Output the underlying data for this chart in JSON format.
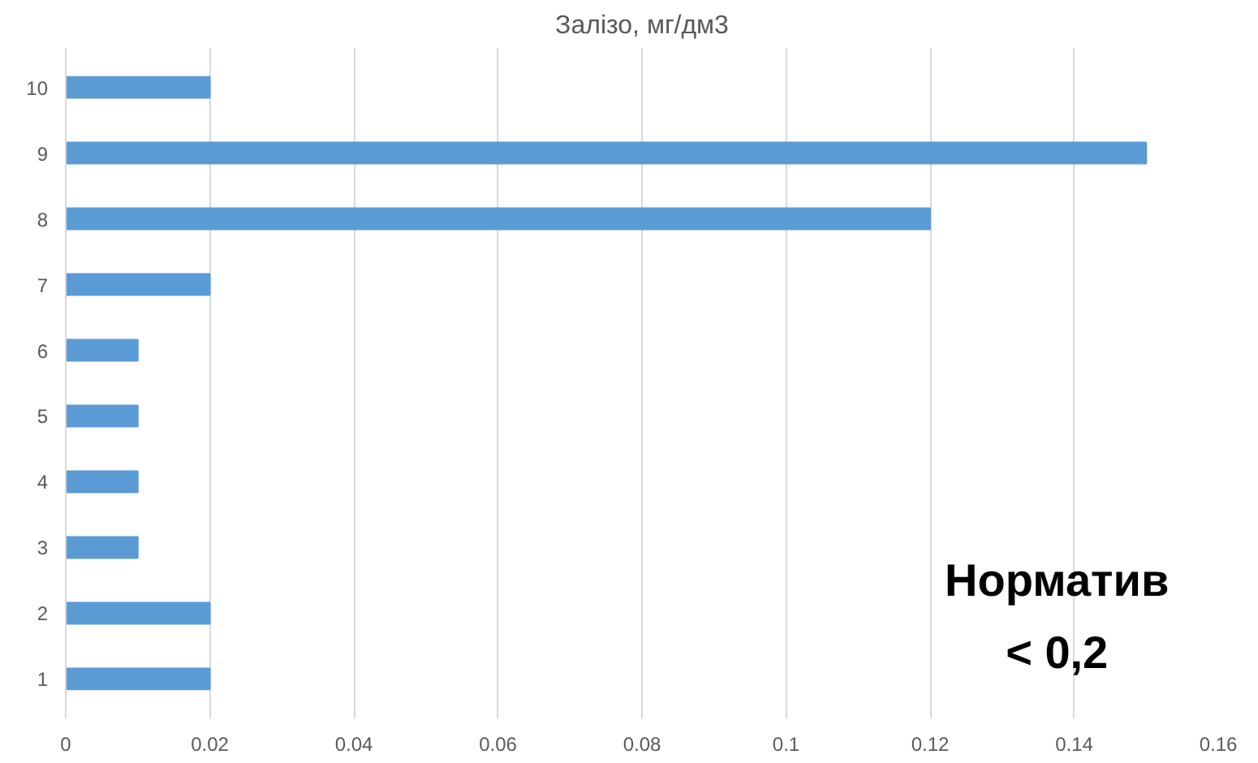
{
  "chart_data": {
    "type": "bar",
    "orientation": "horizontal",
    "title": "Залізо, мг/дм3",
    "categories": [
      "10",
      "9",
      "8",
      "7",
      "6",
      "5",
      "4",
      "3",
      "2",
      "1"
    ],
    "values": [
      0.02,
      0.15,
      0.12,
      0.02,
      0.01,
      0.01,
      0.01,
      0.01,
      0.02,
      0.02
    ],
    "color": "#5b9bd5",
    "xlim": [
      0,
      0.16
    ],
    "xticks": [
      0,
      0.02,
      0.04,
      0.06,
      0.08,
      0.1,
      0.12,
      0.14,
      0.16
    ],
    "grid": "x",
    "annotations": [
      "Норматив",
      "< 0,2"
    ]
  }
}
